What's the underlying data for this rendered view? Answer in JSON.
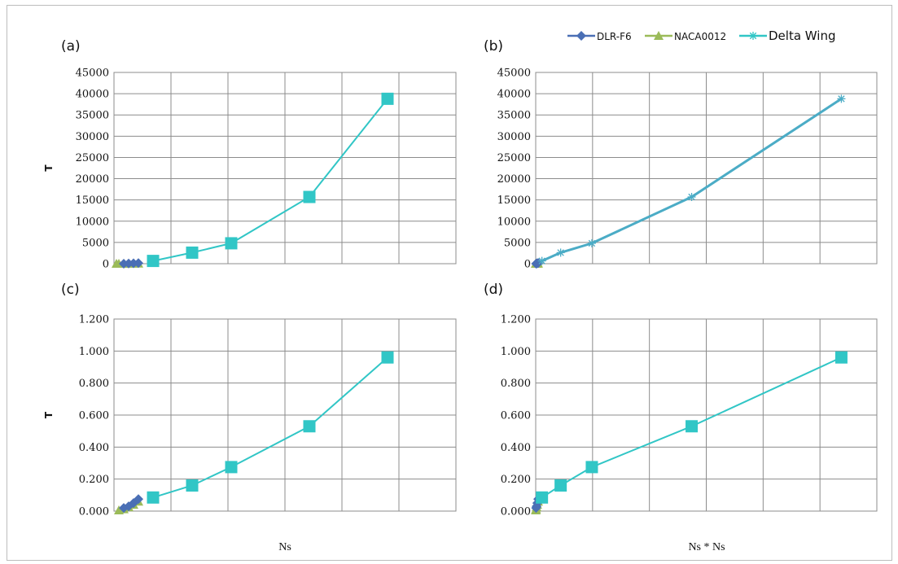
{
  "chart_data": {
    "type": "line",
    "legend": {
      "placement": "top-right",
      "entries": [
        "DLR-F6",
        "NACA0012",
        "Delta Wing"
      ]
    },
    "colors": {
      "DLR-F6": "#4a6fb5",
      "NACA0012": "#9bbb59",
      "Delta Wing": "#31c6c6",
      "Delta Wing (b)": "#4bacc6"
    },
    "panels": [
      {
        "id": "a",
        "label": "(a)",
        "ylabel": "T",
        "xlabel": "",
        "yticks": [
          "0",
          "5000",
          "10000",
          "15000",
          "20000",
          "25000",
          "30000",
          "35000",
          "40000",
          "45000"
        ],
        "ylim": [
          0,
          45000
        ],
        "xlim": [
          0,
          140
        ],
        "grid": true,
        "series": [
          {
            "name": "NACA0012",
            "marker": "triangle",
            "x": [
              1,
              2,
              4,
              6,
              8,
              10
            ],
            "y": [
              1,
              3,
              8,
              18,
              30,
              45
            ]
          },
          {
            "name": "DLR-F6",
            "marker": "diamond",
            "x": [
              4,
              6,
              8,
              10
            ],
            "y": [
              10,
              40,
              90,
              150
            ]
          },
          {
            "name": "Delta Wing",
            "marker": "square",
            "x": [
              16,
              32,
              48,
              80,
              112
            ],
            "y": [
              650,
              2600,
              4800,
              15700,
              38800
            ]
          }
        ]
      },
      {
        "id": "b",
        "label": "(b)",
        "ylabel": "",
        "xlabel": "",
        "yticks": [
          "0",
          "5000",
          "10000",
          "15000",
          "20000",
          "25000",
          "30000",
          "35000",
          "40000",
          "45000"
        ],
        "ylim": [
          0,
          45000
        ],
        "xlim": [
          0,
          14000
        ],
        "grid": true,
        "series": [
          {
            "name": "NACA0012",
            "marker": "triangle",
            "x": [
              1,
              4,
              16,
              36,
              64,
              100
            ],
            "y": [
              1,
              3,
              8,
              18,
              30,
              45
            ]
          },
          {
            "name": "DLR-F6",
            "marker": "diamond",
            "x": [
              16,
              36,
              64,
              100
            ],
            "y": [
              10,
              40,
              90,
              150
            ]
          },
          {
            "name": "Delta Wing",
            "marker": "star",
            "x": [
              256,
              1024,
              2304,
              6400,
              12544
            ],
            "y": [
              650,
              2600,
              4800,
              15700,
              38800
            ]
          }
        ]
      },
      {
        "id": "c",
        "label": "(c)",
        "ylabel": "T",
        "xlabel": "Ns",
        "yticks": [
          "0.000",
          "0.200",
          "0.400",
          "0.600",
          "0.800",
          "1.000",
          "1.200"
        ],
        "ylim": [
          0,
          1.2
        ],
        "xlim": [
          0,
          140
        ],
        "grid": true,
        "series": [
          {
            "name": "NACA0012",
            "marker": "triangle",
            "x": [
              2,
              4,
              6,
              8,
              10
            ],
            "y": [
              0.005,
              0.012,
              0.025,
              0.04,
              0.06
            ]
          },
          {
            "name": "DLR-F6",
            "marker": "diamond",
            "x": [
              4,
              6,
              8,
              10
            ],
            "y": [
              0.02,
              0.03,
              0.05,
              0.075
            ]
          },
          {
            "name": "Delta Wing",
            "marker": "square",
            "x": [
              16,
              32,
              48,
              80,
              112
            ],
            "y": [
              0.085,
              0.16,
              0.275,
              0.53,
              0.96
            ]
          }
        ]
      },
      {
        "id": "d",
        "label": "(d)",
        "ylabel": "",
        "xlabel": "Ns * Ns",
        "yticks": [
          "0.000",
          "0.200",
          "0.400",
          "0.600",
          "0.800",
          "1.000",
          "1.200"
        ],
        "ylim": [
          0,
          1.2
        ],
        "xlim": [
          0,
          14000
        ],
        "grid": true,
        "series": [
          {
            "name": "NACA0012",
            "marker": "triangle",
            "x": [
              4,
              16,
              36,
              64,
              100
            ],
            "y": [
              0.005,
              0.012,
              0.025,
              0.04,
              0.06
            ]
          },
          {
            "name": "DLR-F6",
            "marker": "diamond",
            "x": [
              16,
              36,
              64,
              100
            ],
            "y": [
              0.02,
              0.03,
              0.05,
              0.075
            ]
          },
          {
            "name": "Delta Wing",
            "marker": "square",
            "x": [
              256,
              1024,
              2304,
              6400,
              12544
            ],
            "y": [
              0.085,
              0.16,
              0.275,
              0.53,
              0.96
            ]
          }
        ]
      }
    ]
  }
}
